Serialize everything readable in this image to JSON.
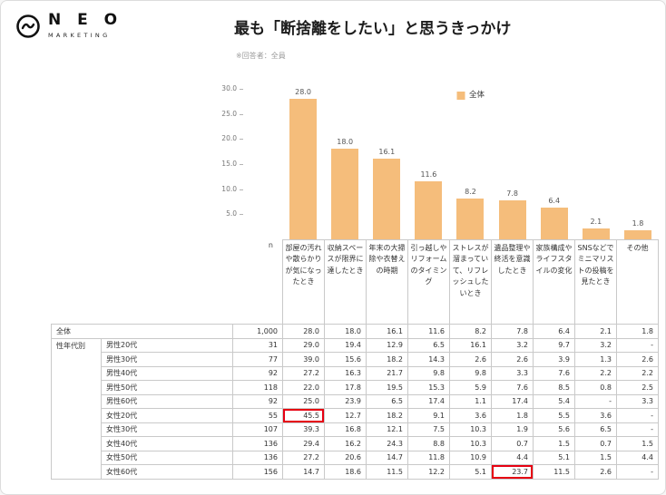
{
  "logo": {
    "name": "N E O",
    "subtitle": "MARKETING"
  },
  "header": {
    "title": "最も「断捨離をしたい」と思うきっかけ",
    "note": "※回答者：全員"
  },
  "chart_data": {
    "type": "bar",
    "title": "最も「断捨離をしたい」と思うきっかけ",
    "legend": [
      {
        "label": "全体",
        "color": "#F5BD7B"
      }
    ],
    "legend_position": "top-center-inside-plot",
    "bar_color": "#F5BD7B",
    "categories": [
      "部屋の汚れや散らかりが気になったとき",
      "収納スペースが限界に達したとき",
      "年末の大掃除や衣替えの時期",
      "引っ越しやリフォームのタイミング",
      "ストレスが溜まっていて、リフレッシュしたいとき",
      "遺品整理や終活を意識したとき",
      "家族構成やライフスタイルの変化",
      "SNSなどでミニマリストの投稿を見たとき",
      "その他"
    ],
    "values": [
      28.0,
      18.0,
      16.1,
      11.6,
      8.2,
      7.8,
      6.4,
      2.1,
      1.8
    ],
    "ylim": [
      0,
      30
    ],
    "yticks": [
      30.0,
      25.0,
      20.0,
      15.0,
      10.0,
      5.0
    ],
    "grid": false
  },
  "table": {
    "n_header": "n",
    "group_all_label": "全体",
    "group_demo_label": "性年代別",
    "columns": [
      "部屋の汚れや散らかりが気になったとき",
      "収納スペースが限界に達したとき",
      "年末の大掃除や衣替えの時期",
      "引っ越しやリフォームのタイミング",
      "ストレスが溜まっていて、リフレッシュしたいとき",
      "遺品整理や終活を意識したとき",
      "家族構成やライフスタイルの変化",
      "SNSなどでミニマリストの投稿を見たとき",
      "その他"
    ],
    "rows": [
      {
        "group": "全体",
        "sub": null,
        "n": "1,000",
        "values": [
          "28.0",
          "18.0",
          "16.1",
          "11.6",
          "8.2",
          "7.8",
          "6.4",
          "2.1",
          "1.8"
        ]
      },
      {
        "group": "性年代別",
        "sub": "男性20代",
        "n": "31",
        "values": [
          "29.0",
          "19.4",
          "12.9",
          "6.5",
          "16.1",
          "3.2",
          "9.7",
          "3.2",
          "-"
        ]
      },
      {
        "sub": "男性30代",
        "n": "77",
        "values": [
          "39.0",
          "15.6",
          "18.2",
          "14.3",
          "2.6",
          "2.6",
          "3.9",
          "1.3",
          "2.6"
        ]
      },
      {
        "sub": "男性40代",
        "n": "92",
        "values": [
          "27.2",
          "16.3",
          "21.7",
          "9.8",
          "9.8",
          "3.3",
          "7.6",
          "2.2",
          "2.2"
        ]
      },
      {
        "sub": "男性50代",
        "n": "118",
        "values": [
          "22.0",
          "17.8",
          "19.5",
          "15.3",
          "5.9",
          "7.6",
          "8.5",
          "0.8",
          "2.5"
        ]
      },
      {
        "sub": "男性60代",
        "n": "92",
        "values": [
          "25.0",
          "23.9",
          "6.5",
          "17.4",
          "1.1",
          "17.4",
          "5.4",
          "-",
          "3.3"
        ]
      },
      {
        "sub": "女性20代",
        "n": "55",
        "values": [
          "45.5",
          "12.7",
          "18.2",
          "9.1",
          "3.6",
          "1.8",
          "5.5",
          "3.6",
          "-"
        ]
      },
      {
        "sub": "女性30代",
        "n": "107",
        "values": [
          "39.3",
          "16.8",
          "12.1",
          "7.5",
          "10.3",
          "1.9",
          "5.6",
          "6.5",
          "-"
        ]
      },
      {
        "sub": "女性40代",
        "n": "136",
        "values": [
          "29.4",
          "16.2",
          "24.3",
          "8.8",
          "10.3",
          "0.7",
          "1.5",
          "0.7",
          "1.5"
        ]
      },
      {
        "sub": "女性50代",
        "n": "136",
        "values": [
          "27.2",
          "20.6",
          "14.7",
          "11.8",
          "10.9",
          "4.4",
          "5.1",
          "1.5",
          "4.4"
        ]
      },
      {
        "sub": "女性60代",
        "n": "156",
        "values": [
          "14.7",
          "18.6",
          "11.5",
          "12.2",
          "5.1",
          "23.7",
          "11.5",
          "2.6",
          "-"
        ]
      }
    ],
    "highlights": [
      {
        "row": 6,
        "col": 0
      },
      {
        "row": 10,
        "col": 5
      }
    ],
    "highlight_color": "#e60012"
  }
}
